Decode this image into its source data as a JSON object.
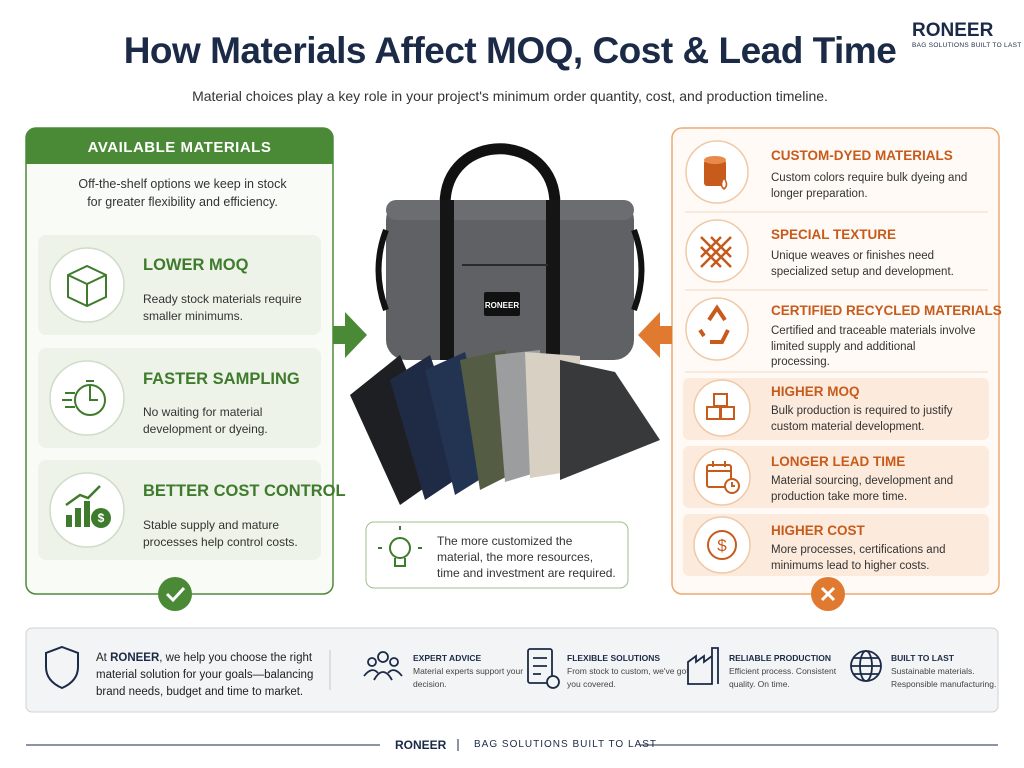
{
  "header": {
    "brand": "RONEER",
    "brand_tagline": "BAG SOLUTIONS BUILT TO LAST",
    "title": "How Materials Affect MOQ, Cost & Lead Time",
    "subtitle": "Material choices play a key role in your project's minimum order quantity, cost, and production timeline."
  },
  "available": {
    "heading": "AVAILABLE MATERIALS",
    "intro": "Off-the-shelf options we keep in stock for greater flexibility and efficiency.",
    "items": [
      {
        "title": "LOWER MOQ",
        "text": "Ready stock materials require smaller minimums."
      },
      {
        "title": "FASTER SAMPLING",
        "text": "No waiting for material development or dyeing."
      },
      {
        "title": "BETTER COST CONTROL",
        "text": "Stable supply and mature processes help control costs."
      }
    ]
  },
  "center": {
    "bag_label": "RONEER",
    "note": "The more customized the material, the more resources, time and investment are required."
  },
  "custom": {
    "items": [
      {
        "title": "CUSTOM-DYED MATERIALS",
        "text": "Custom colors require bulk dyeing and longer preparation."
      },
      {
        "title": "SPECIAL TEXTURE",
        "text": "Unique weaves or finishes need specialized setup and development."
      },
      {
        "title": "CERTIFIED RECYCLED MATERIALS",
        "text": "Certified and traceable materials involve limited supply and additional processing."
      },
      {
        "title": "HIGHER MOQ",
        "text": "Bulk production is required to justify custom material development."
      },
      {
        "title": "LONGER LEAD TIME",
        "text": "Material sourcing, development and production take more time."
      },
      {
        "title": "HIGHER COST",
        "text": "More processes, certifications and minimums lead to higher costs."
      }
    ]
  },
  "support": {
    "text_prefix": "At ",
    "text_brand": "RONEER",
    "text_rest": ", we help you choose the right material solution for your goals—balancing brand needs, budget and time to market.",
    "features": [
      {
        "title": "EXPERT ADVICE",
        "text": "Material experts support your decision."
      },
      {
        "title": "FLEXIBLE SOLUTIONS",
        "text": "From stock to custom, we've got you covered."
      },
      {
        "title": "RELIABLE PRODUCTION",
        "text": "Efficient process. Consistent quality. On time."
      },
      {
        "title": "BUILT TO LAST",
        "text": "Sustainable materials. Responsible manufacturing."
      }
    ]
  },
  "footer": {
    "brand": "RONEER",
    "tagline": "BAG SOLUTIONS BUILT TO LAST"
  }
}
